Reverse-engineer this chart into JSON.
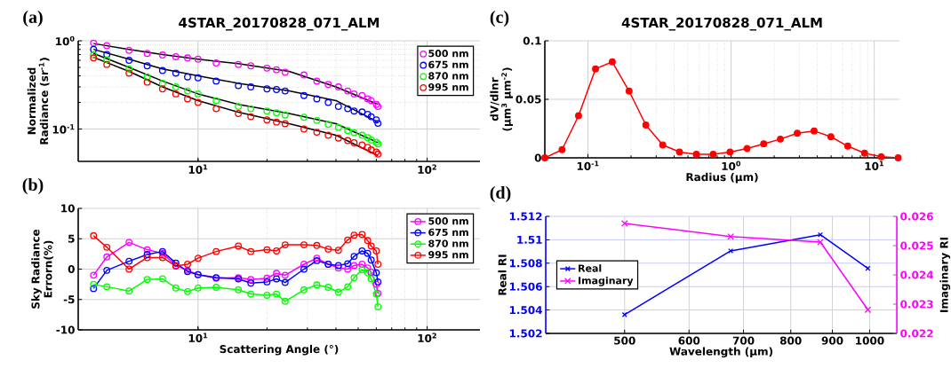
{
  "chart_data": [
    {
      "type": "scatter",
      "title": "4STAR_20170828_071_ALM",
      "annotations": [
        "(a)"
      ],
      "ylabel": "Normalized Radiance (sr$^{-1}$)",
      "x": [
        3.5,
        4,
        5,
        6,
        7,
        8,
        9,
        10,
        12,
        15,
        17,
        20,
        22,
        24,
        29,
        33,
        37,
        41,
        45,
        48,
        52,
        55,
        57,
        60,
        61
      ],
      "series": [
        {
          "name": "500 nm",
          "color": "#ff00ff",
          "values": [
            0.94,
            0.88,
            0.78,
            0.72,
            0.69,
            0.66,
            0.64,
            0.62,
            0.56,
            0.54,
            0.52,
            0.49,
            0.47,
            0.44,
            0.41,
            0.35,
            0.32,
            0.3,
            0.27,
            0.25,
            0.24,
            0.22,
            0.21,
            0.19,
            0.18
          ]
        },
        {
          "name": "675 nm",
          "color": "#0000ff",
          "values": [
            0.8,
            0.7,
            0.6,
            0.52,
            0.46,
            0.43,
            0.39,
            0.38,
            0.35,
            0.31,
            0.3,
            0.285,
            0.28,
            0.27,
            0.24,
            0.22,
            0.2,
            0.18,
            0.17,
            0.16,
            0.156,
            0.147,
            0.138,
            0.127,
            0.116
          ]
        },
        {
          "name": "870 nm",
          "color": "#00ff00",
          "values": [
            0.69,
            0.61,
            0.48,
            0.39,
            0.33,
            0.3,
            0.27,
            0.25,
            0.21,
            0.18,
            0.17,
            0.16,
            0.153,
            0.144,
            0.136,
            0.125,
            0.113,
            0.104,
            0.096,
            0.091,
            0.085,
            0.08,
            0.075,
            0.071,
            0.068
          ]
        },
        {
          "name": "995 nm",
          "color": "#ff0000",
          "values": [
            0.64,
            0.54,
            0.43,
            0.34,
            0.285,
            0.25,
            0.22,
            0.2,
            0.17,
            0.15,
            0.138,
            0.127,
            0.12,
            0.115,
            0.1,
            0.092,
            0.085,
            0.079,
            0.074,
            0.07,
            0.066,
            0.062,
            0.058,
            0.055,
            0.052
          ]
        },
        {
          "type": "line",
          "marker": "none",
          "color": "#000000",
          "x": [
            3.5,
            5,
            7,
            10,
            15,
            25,
            40,
            61
          ],
          "values": [
            0.93,
            0.8,
            0.7,
            0.62,
            0.55,
            0.45,
            0.3,
            0.19
          ]
        },
        {
          "type": "line",
          "marker": "none",
          "color": "#000000",
          "x": [
            3.5,
            5,
            7,
            10,
            15,
            25,
            40,
            61
          ],
          "values": [
            0.8,
            0.62,
            0.48,
            0.4,
            0.33,
            0.27,
            0.21,
            0.12
          ]
        },
        {
          "type": "line",
          "marker": "none",
          "color": "#000000",
          "x": [
            3.5,
            5,
            7,
            10,
            15,
            25,
            40,
            61
          ],
          "values": [
            0.72,
            0.5,
            0.35,
            0.25,
            0.19,
            0.15,
            0.115,
            0.07
          ]
        },
        {
          "type": "line",
          "marker": "none",
          "color": "#000000",
          "x": [
            3.5,
            5,
            7,
            10,
            15,
            25,
            40,
            61
          ],
          "values": [
            0.65,
            0.45,
            0.3,
            0.21,
            0.155,
            0.115,
            0.085,
            0.05
          ]
        }
      ],
      "xlim": [
        3,
        170
      ],
      "ylim": [
        0.043,
        1
      ],
      "xticks": [
        {
          "value": 10,
          "label": "10$^{1}$"
        },
        {
          "value": 100,
          "label": "10$^{2}$"
        }
      ],
      "yticks": [
        {
          "value": 0.1,
          "label": "10$^{-1}$"
        },
        {
          "value": 1,
          "label": "10$^{0}$"
        }
      ],
      "log": "xy",
      "grid": true,
      "legend": "top right",
      "marker": "circle"
    },
    {
      "type": "line",
      "annotations": [
        "(b)"
      ],
      "xlabel": "Scattering Angle (°)",
      "ylabel": "Sky Radiance Errorn(%)",
      "x": [
        3.5,
        4,
        5,
        6,
        7,
        8,
        9,
        10,
        12,
        15,
        17,
        20,
        22,
        24,
        29,
        33,
        37,
        41,
        45,
        48,
        52,
        55,
        57,
        60,
        61
      ],
      "series": [
        {
          "name": "500 nm",
          "color": "#ff00ff",
          "values": [
            -1.0,
            2.0,
            4.4,
            3.2,
            2.6,
            0.6,
            -0.2,
            -0.9,
            -1.5,
            -1.4,
            -1.7,
            -1.5,
            -0.7,
            -1.0,
            0.8,
            1.8,
            0.8,
            0.2,
            0.0,
            0.6,
            0.8,
            0.2,
            -0.5,
            -2.5,
            -4.0
          ]
        },
        {
          "name": "675 nm",
          "color": "#0000ff",
          "values": [
            -3.2,
            -0.2,
            1.3,
            2.4,
            2.9,
            1.0,
            -0.4,
            -0.9,
            -1.4,
            -1.6,
            -2.3,
            -2.1,
            -1.6,
            -2.2,
            0.0,
            1.4,
            0.8,
            0.6,
            0.9,
            2.1,
            3.0,
            2.6,
            1.5,
            -0.6,
            -2.1
          ]
        },
        {
          "name": "870 nm",
          "color": "#00ff00",
          "values": [
            -2.5,
            -2.9,
            -3.6,
            -1.7,
            -1.6,
            -3.1,
            -3.7,
            -3.1,
            -3.0,
            -3.4,
            -4.1,
            -4.3,
            -4.1,
            -5.3,
            -3.4,
            -2.6,
            -3.0,
            -3.8,
            -2.9,
            -1.4,
            -0.1,
            -0.6,
            -1.6,
            -4.1,
            -6.2
          ]
        },
        {
          "name": "995 nm",
          "color": "#ff0000",
          "values": [
            5.5,
            3.6,
            0.0,
            1.9,
            1.9,
            0.5,
            0.8,
            1.8,
            2.9,
            3.8,
            2.9,
            3.2,
            3.0,
            4.0,
            4.0,
            3.9,
            3.3,
            3.1,
            4.8,
            5.6,
            5.7,
            4.7,
            3.8,
            3.0,
            0.8
          ]
        }
      ],
      "xlim": [
        3,
        170
      ],
      "ylim": [
        -10,
        10
      ],
      "xticks": [
        {
          "value": 10,
          "label": "10$^{1}$"
        },
        {
          "value": 100,
          "label": "10$^{2}$"
        }
      ],
      "yticks": [
        -10,
        -5,
        0,
        5,
        10
      ],
      "log": "x",
      "grid": true,
      "legend": "top right",
      "marker": "circle"
    },
    {
      "type": "line",
      "title": "4STAR_20170828_071_ALM",
      "annotations": [
        "(c)"
      ],
      "xlabel": "Radius (µm)",
      "ylabel": "dV/dlnr (µm$^{3}$ µm$^{-2}$)",
      "x": [
        0.05,
        0.066,
        0.086,
        0.113,
        0.148,
        0.194,
        0.254,
        0.333,
        0.436,
        0.572,
        0.75,
        0.982,
        1.29,
        1.69,
        2.21,
        2.9,
        3.8,
        4.98,
        6.53,
        8.56,
        11.2,
        14.7
      ],
      "series": [
        {
          "color": "#ff0000",
          "values": [
            0,
            0.007,
            0.036,
            0.076,
            0.082,
            0.057,
            0.028,
            0.011,
            0.005,
            0.003,
            0.003,
            0.005,
            0.008,
            0.012,
            0.016,
            0.021,
            0.023,
            0.018,
            0.01,
            0.004,
            0.001,
            0
          ]
        }
      ],
      "xlim": [
        0.05,
        15
      ],
      "ylim": [
        0,
        0.1
      ],
      "xticks": [
        {
          "value": 0.1,
          "label": "10$^{-1}$"
        },
        {
          "value": 1,
          "label": "10$^{0}$"
        },
        {
          "value": 10,
          "label": "10$^{1}$"
        }
      ],
      "yticks": [
        0,
        0.05,
        0.1
      ],
      "log": "x",
      "grid": true,
      "marker": "circle"
    },
    {
      "type": "line",
      "annotations": [
        "(d)"
      ],
      "xlabel": "Wavelength (µm)",
      "ylabel": "Real RI",
      "y2label": "Imaginary RI",
      "x": [
        500,
        675,
        870,
        995
      ],
      "series": [
        {
          "name": "Real",
          "color": "#0000ff",
          "values": [
            1.5036,
            1.50905,
            1.51043,
            1.50756
          ]
        },
        {
          "name": "Imaginary",
          "color": "#ff00ff",
          "axis": "y2",
          "values": [
            0.02576,
            0.02531,
            0.02512,
            0.02281
          ]
        }
      ],
      "xlim": [
        400,
        1080
      ],
      "ylim": [
        1.502,
        1.512
      ],
      "y2lim": [
        0.022,
        0.026
      ],
      "xticks": [
        500,
        600,
        700,
        800,
        900,
        1000
      ],
      "yticks": [
        1.502,
        1.504,
        1.506,
        1.508,
        1.51,
        1.512
      ],
      "y2ticks": [
        0.022,
        0.023,
        0.024,
        0.025,
        0.026
      ],
      "log": "x",
      "grid": true,
      "legend": "left",
      "marker": "cross"
    }
  ]
}
